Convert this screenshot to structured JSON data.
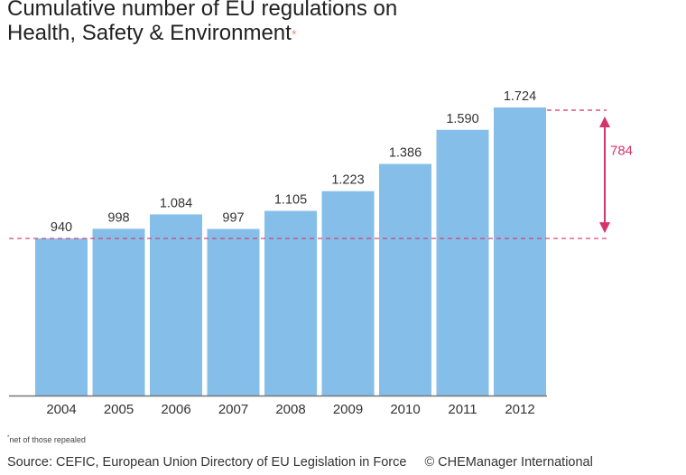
{
  "chart_data": {
    "type": "bar",
    "title_lines": [
      "Cumulative number of EU regulations on",
      "Health, Safety & Environment"
    ],
    "title_marker": "*",
    "categories": [
      "2004",
      "2005",
      "2006",
      "2007",
      "2008",
      "2009",
      "2010",
      "2011",
      "2012"
    ],
    "values": [
      940,
      998,
      1084,
      997,
      1105,
      1223,
      1386,
      1590,
      1724
    ],
    "value_labels": [
      "940",
      "998",
      "1.084",
      "997",
      "1.105",
      "1.223",
      "1.386",
      "1.590",
      "1.724"
    ],
    "ylim": [
      0,
      1724
    ],
    "xlabel": "",
    "ylabel": "",
    "bar_color": "#85bfe9",
    "annotation": {
      "label": "784",
      "from_value": 940,
      "to_value": 1724,
      "color": "#d6336c"
    }
  },
  "footnote": {
    "marker": "*",
    "text": "net of those repealed"
  },
  "source": {
    "text": "Source: CEFIC, European Union Directory of EU Legislation in Force",
    "credit": "© CHEManager International"
  }
}
